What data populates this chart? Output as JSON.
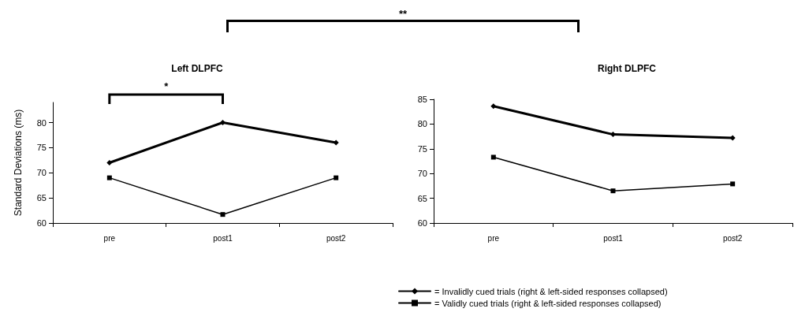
{
  "chart_data": [
    {
      "type": "line",
      "title": "Left DLPFC",
      "ylabel": "Standard Deviations (ms)",
      "categories": [
        "pre",
        "post1",
        "post2"
      ],
      "series": [
        {
          "color": "#000000",
          "marker": "diamond",
          "values": [
            72,
            80,
            76
          ]
        },
        {
          "color": "#000000",
          "marker": "square",
          "values": [
            69,
            61.7,
            69
          ]
        }
      ],
      "ylim": [
        60,
        84
      ],
      "yticks": [
        60,
        65,
        70,
        75,
        80
      ],
      "grid": false,
      "legend": false,
      "line_style": "solid",
      "annotations": [
        "*",
        "**"
      ]
    },
    {
      "type": "line",
      "title": "Right DLPFC",
      "categories": [
        "pre",
        "post1",
        "post2"
      ],
      "series": [
        {
          "name": "= Invalidly cued trials (right & left-sided responses collapsed)",
          "color": "#000000",
          "marker": "diamond",
          "values": [
            83.6,
            77.9,
            77.2
          ]
        },
        {
          "name": "= Validly cued trials (right & left-sided responses collapsed)",
          "color": "#000000",
          "marker": "square",
          "values": [
            73.3,
            66.5,
            67.9
          ]
        }
      ],
      "ylim": [
        60,
        85
      ],
      "yticks": [
        60,
        65,
        70,
        75,
        80,
        85
      ],
      "grid": false,
      "legend": "bottom",
      "line_style": "solid"
    }
  ]
}
